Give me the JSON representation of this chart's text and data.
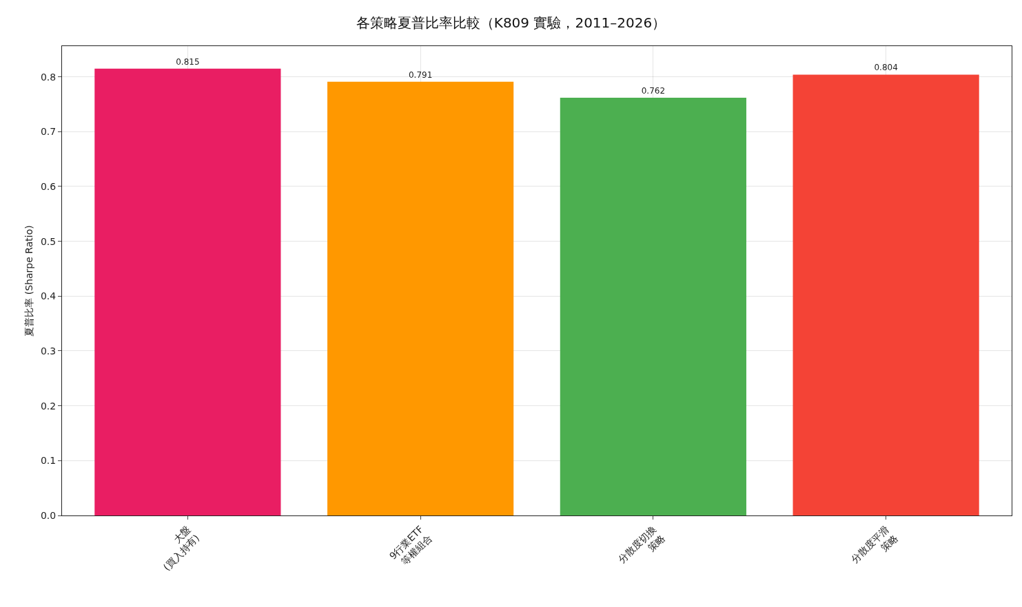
{
  "chart_data": {
    "type": "bar",
    "title": "各策略夏普比率比較（K809 實驗，2011–2026）",
    "ylabel": "夏普比率 (Sharpe Ratio)",
    "categories": [
      "大盤\n(買入持有)",
      "9行業ETF\n等權組合",
      "分散度切換\n策略",
      "分散度平滑\n策略"
    ],
    "values": [
      0.815,
      0.791,
      0.762,
      0.804
    ],
    "colors": [
      "#e91e63",
      "#ff9800",
      "#4caf50",
      "#f44336"
    ],
    "ylim": [
      0,
      0.856
    ],
    "yticks": [
      {
        "value": 0,
        "label": "0.0"
      },
      0.1,
      0.2,
      0.3,
      0.4,
      0.5,
      0.6,
      0.7,
      0.8
    ],
    "grid": true,
    "data_labels": true
  }
}
